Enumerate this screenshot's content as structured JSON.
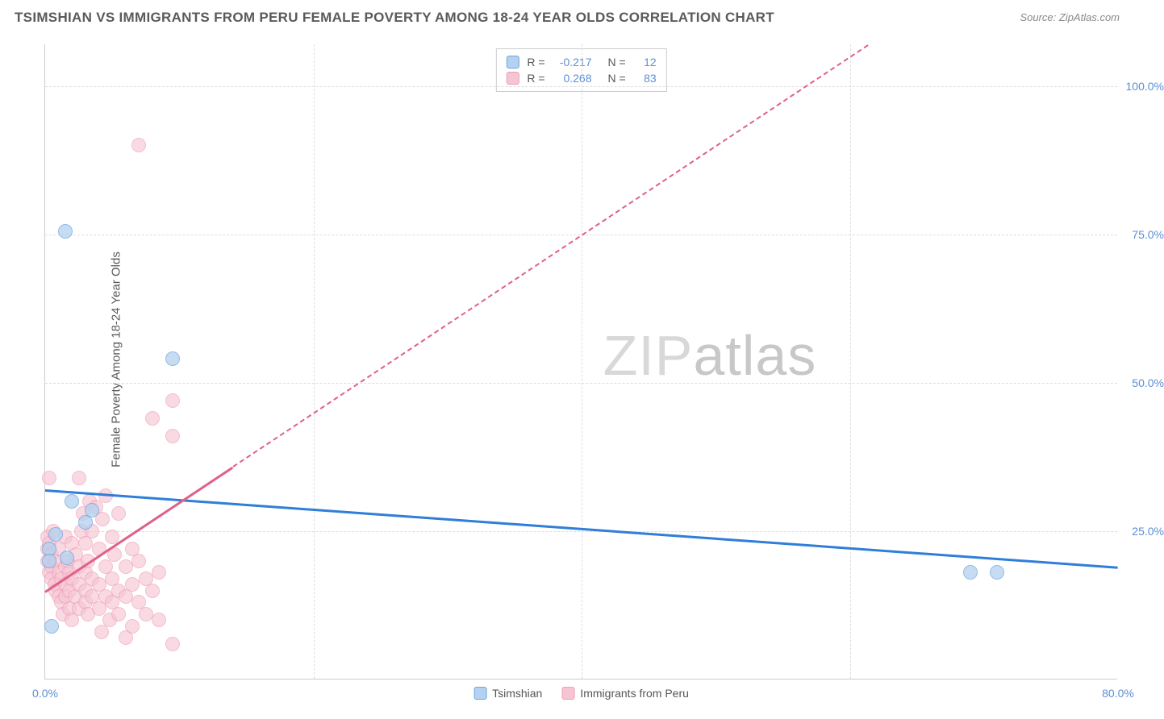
{
  "title": "TSIMSHIAN VS IMMIGRANTS FROM PERU FEMALE POVERTY AMONG 18-24 YEAR OLDS CORRELATION CHART",
  "source": "Source: ZipAtlas.com",
  "ylabel": "Female Poverty Among 18-24 Year Olds",
  "watermark_a": "ZIP",
  "watermark_b": "atlas",
  "chart": {
    "type": "scatter",
    "xlim": [
      0,
      80
    ],
    "ylim": [
      0,
      107
    ],
    "x_ticks": [
      {
        "v": 0,
        "label": "0.0%"
      },
      {
        "v": 80,
        "label": "80.0%"
      }
    ],
    "x_grid": [
      20,
      40,
      60
    ],
    "y_ticks": [
      {
        "v": 25,
        "label": "25.0%"
      },
      {
        "v": 50,
        "label": "50.0%"
      },
      {
        "v": 75,
        "label": "75.0%"
      },
      {
        "v": 100,
        "label": "100.0%"
      }
    ],
    "background_color": "#ffffff",
    "grid_color": "#dddddd",
    "axis_color": "#cccccc",
    "tick_color": "#5b8fd6",
    "series": [
      {
        "name": "Tsimshian",
        "fill": "#b3d1f0",
        "stroke": "#6ca6e0",
        "stroke_width": 1.5,
        "opacity": 0.75,
        "r": 9,
        "R": -0.217,
        "N": 12,
        "trend": {
          "color": "#2f7ed8",
          "width": 3,
          "x1": 0,
          "y1": 32,
          "x2": 80,
          "y2": 19,
          "solid_until": 80
        },
        "points": [
          {
            "x": 0.3,
            "y": 22
          },
          {
            "x": 0.3,
            "y": 20
          },
          {
            "x": 0.5,
            "y": 9
          },
          {
            "x": 0.8,
            "y": 24.5
          },
          {
            "x": 1.6,
            "y": 20.5
          },
          {
            "x": 2.0,
            "y": 30
          },
          {
            "x": 3.5,
            "y": 28.5
          },
          {
            "x": 3.0,
            "y": 26.5
          },
          {
            "x": 1.5,
            "y": 75.5
          },
          {
            "x": 9.5,
            "y": 54
          },
          {
            "x": 69,
            "y": 18
          },
          {
            "x": 71,
            "y": 18
          }
        ]
      },
      {
        "name": "Immigrants from Peru",
        "fill": "#f6c5d4",
        "stroke": "#ee9db4",
        "stroke_width": 1.5,
        "opacity": 0.65,
        "r": 9,
        "R": 0.268,
        "N": 83,
        "trend": {
          "color": "#e06088",
          "width": 3,
          "x1": 0,
          "y1": 15,
          "x2": 80,
          "y2": 135,
          "solid_until": 14
        },
        "points": [
          {
            "x": 0.2,
            "y": 24
          },
          {
            "x": 0.2,
            "y": 22
          },
          {
            "x": 0.2,
            "y": 20
          },
          {
            "x": 0.3,
            "y": 18
          },
          {
            "x": 0.3,
            "y": 23
          },
          {
            "x": 0.5,
            "y": 21
          },
          {
            "x": 0.5,
            "y": 19
          },
          {
            "x": 0.5,
            "y": 17
          },
          {
            "x": 0.6,
            "y": 25
          },
          {
            "x": 0.7,
            "y": 16
          },
          {
            "x": 0.8,
            "y": 15
          },
          {
            "x": 0.8,
            "y": 20
          },
          {
            "x": 1.0,
            "y": 14
          },
          {
            "x": 1.0,
            "y": 18
          },
          {
            "x": 1.0,
            "y": 22
          },
          {
            "x": 1.2,
            "y": 17
          },
          {
            "x": 1.2,
            "y": 13
          },
          {
            "x": 1.3,
            "y": 11
          },
          {
            "x": 1.5,
            "y": 19
          },
          {
            "x": 1.5,
            "y": 16
          },
          {
            "x": 1.5,
            "y": 14
          },
          {
            "x": 1.5,
            "y": 24
          },
          {
            "x": 1.7,
            "y": 20
          },
          {
            "x": 1.8,
            "y": 12
          },
          {
            "x": 1.8,
            "y": 18
          },
          {
            "x": 1.8,
            "y": 15
          },
          {
            "x": 2.0,
            "y": 10
          },
          {
            "x": 2.0,
            "y": 23
          },
          {
            "x": 2.0,
            "y": 17
          },
          {
            "x": 2.2,
            "y": 14
          },
          {
            "x": 2.3,
            "y": 21
          },
          {
            "x": 2.5,
            "y": 12
          },
          {
            "x": 2.5,
            "y": 16
          },
          {
            "x": 2.5,
            "y": 19
          },
          {
            "x": 2.7,
            "y": 25
          },
          {
            "x": 2.8,
            "y": 28
          },
          {
            "x": 3.0,
            "y": 23
          },
          {
            "x": 3.0,
            "y": 15
          },
          {
            "x": 3.0,
            "y": 18
          },
          {
            "x": 3.0,
            "y": 13
          },
          {
            "x": 3.2,
            "y": 11
          },
          {
            "x": 3.2,
            "y": 20
          },
          {
            "x": 3.3,
            "y": 30
          },
          {
            "x": 3.5,
            "y": 17
          },
          {
            "x": 3.5,
            "y": 14
          },
          {
            "x": 3.5,
            "y": 25
          },
          {
            "x": 3.8,
            "y": 29
          },
          {
            "x": 4.0,
            "y": 16
          },
          {
            "x": 4.0,
            "y": 12
          },
          {
            "x": 4.0,
            "y": 22
          },
          {
            "x": 4.2,
            "y": 8
          },
          {
            "x": 4.3,
            "y": 27
          },
          {
            "x": 4.5,
            "y": 19
          },
          {
            "x": 4.5,
            "y": 14
          },
          {
            "x": 4.5,
            "y": 31
          },
          {
            "x": 4.8,
            "y": 10
          },
          {
            "x": 5.0,
            "y": 24
          },
          {
            "x": 5.0,
            "y": 17
          },
          {
            "x": 5.0,
            "y": 13
          },
          {
            "x": 5.2,
            "y": 21
          },
          {
            "x": 5.5,
            "y": 15
          },
          {
            "x": 5.5,
            "y": 28
          },
          {
            "x": 5.5,
            "y": 11
          },
          {
            "x": 6.0,
            "y": 19
          },
          {
            "x": 6.0,
            "y": 14
          },
          {
            "x": 6.0,
            "y": 7
          },
          {
            "x": 6.5,
            "y": 22
          },
          {
            "x": 6.5,
            "y": 16
          },
          {
            "x": 6.5,
            "y": 9
          },
          {
            "x": 7.0,
            "y": 13
          },
          {
            "x": 7.0,
            "y": 20
          },
          {
            "x": 7.5,
            "y": 17
          },
          {
            "x": 7.5,
            "y": 11
          },
          {
            "x": 8.0,
            "y": 15
          },
          {
            "x": 8.0,
            "y": 44
          },
          {
            "x": 8.5,
            "y": 10
          },
          {
            "x": 8.5,
            "y": 18
          },
          {
            "x": 9.5,
            "y": 6
          },
          {
            "x": 9.5,
            "y": 41
          },
          {
            "x": 9.5,
            "y": 47
          },
          {
            "x": 2.5,
            "y": 34
          },
          {
            "x": 0.3,
            "y": 34
          },
          {
            "x": 7.0,
            "y": 90
          }
        ]
      }
    ]
  },
  "legend": [
    {
      "label": "Tsimshian",
      "fill": "#b3d1f0",
      "stroke": "#6ca6e0"
    },
    {
      "label": "Immigrants from Peru",
      "fill": "#f6c5d4",
      "stroke": "#ee9db4"
    }
  ]
}
